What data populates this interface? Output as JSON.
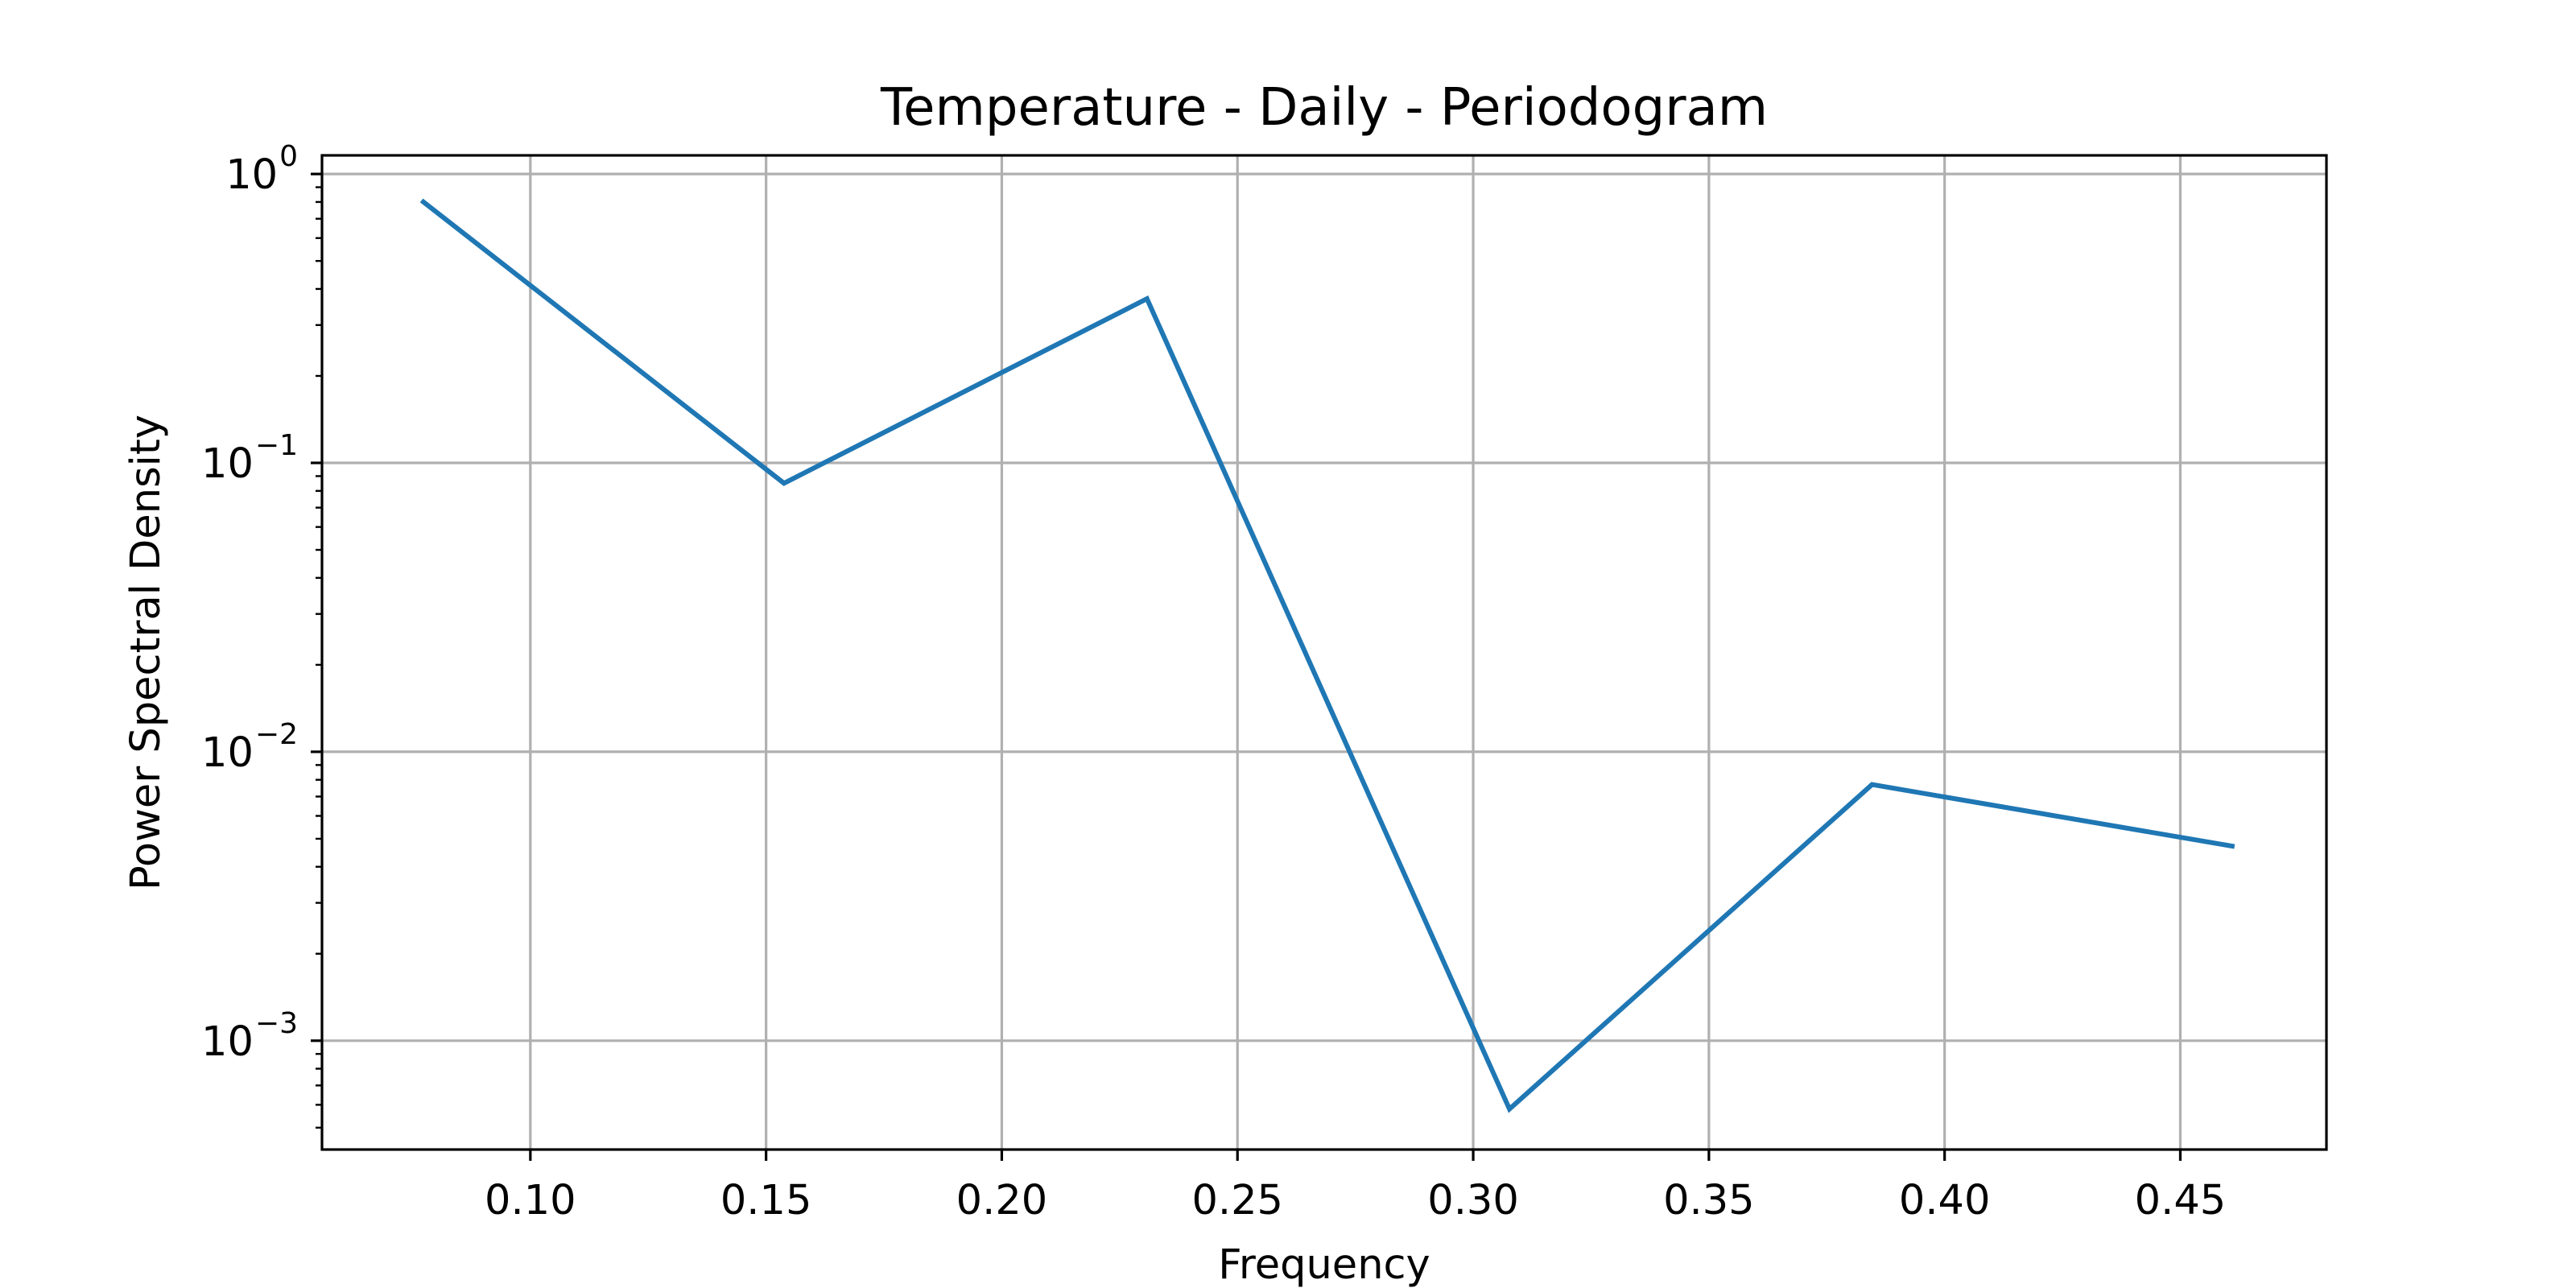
{
  "chart_data": {
    "type": "line",
    "title": "Temperature - Daily - Periodogram",
    "xlabel": "Frequency",
    "ylabel": "Power Spectral Density",
    "yscale": "log",
    "grid": true,
    "xlim": [
      0.0558,
      0.481
    ],
    "ylim": [
      0.00042,
      1.16
    ],
    "xticks": [
      0.1,
      0.15,
      0.2,
      0.25,
      0.3,
      0.35,
      0.4,
      0.45
    ],
    "xtick_labels": [
      "0.10",
      "0.15",
      "0.20",
      "0.25",
      "0.30",
      "0.35",
      "0.40",
      "0.45"
    ],
    "yticks": [
      {
        "value": 1,
        "base": "10",
        "exp": "0"
      },
      {
        "value": 0.1,
        "base": "10",
        "exp": "−1"
      },
      {
        "value": 0.01,
        "base": "10",
        "exp": "−2"
      },
      {
        "value": 0.001,
        "base": "10",
        "exp": "−3"
      }
    ],
    "series": [
      {
        "color": "#1f77b4",
        "x": [
          0.0769,
          0.1538,
          0.2308,
          0.3077,
          0.3846,
          0.4615
        ],
        "y": [
          0.81,
          0.085,
          0.37,
          0.00058,
          0.0077,
          0.0047
        ]
      }
    ]
  }
}
